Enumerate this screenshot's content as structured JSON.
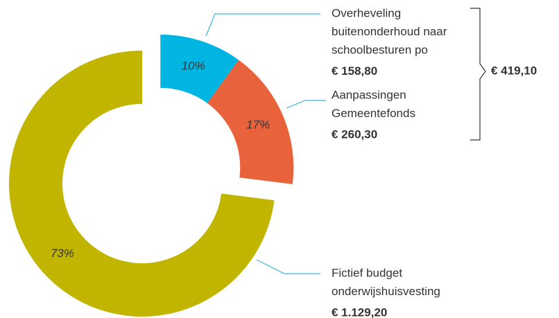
{
  "chart_data": {
    "type": "donut",
    "categories": [
      [
        "Overheveling",
        "buitenonderhoud naar",
        "schoolbesturen po"
      ],
      [
        "Aanpassingen",
        "Gemeentefonds"
      ],
      [
        "Fictief budget",
        "onderwijshuisvesting"
      ]
    ],
    "values": [
      10,
      17,
      73
    ],
    "value_labels": [
      "10%",
      "17%",
      "73%"
    ],
    "amounts": [
      158.8,
      260.3,
      1129.2
    ],
    "amount_labels": [
      "€ 158,80",
      "€ 260,30",
      "€ 1.129,20"
    ],
    "colors": [
      "#00b5e2",
      "#e8623b",
      "#c2b500"
    ],
    "exploded": [
      true,
      true,
      false
    ],
    "group_total": {
      "value": 419.1,
      "label": "€ 419,10"
    }
  }
}
